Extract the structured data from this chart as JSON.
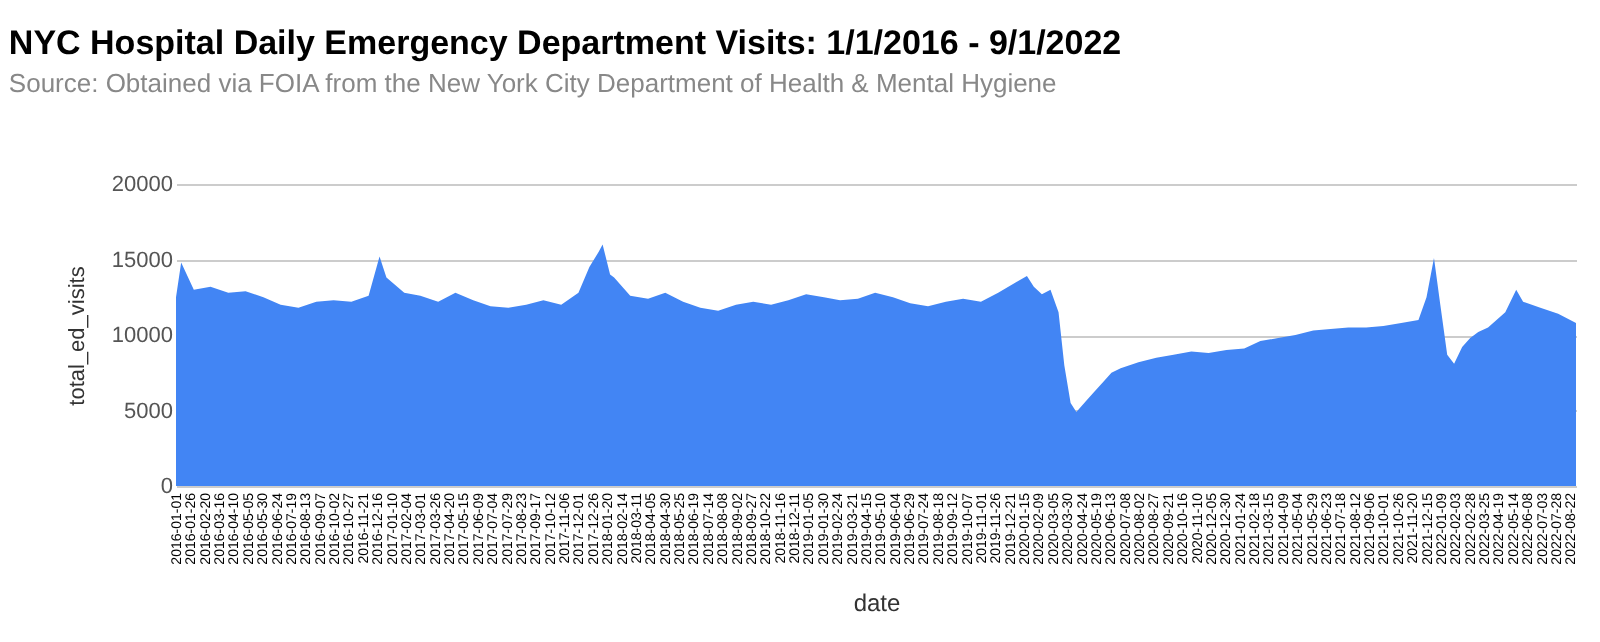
{
  "chart_data": {
    "type": "area",
    "title": "NYC Hospital Daily Emergency Department Visits: 1/1/2016 - 9/1/2022",
    "subtitle": "Source: Obtained via FOIA from the New York City Department of Health & Mental Hygiene",
    "xlabel": "date",
    "ylabel": "total_ed_visits",
    "x": [
      "2016-01-01",
      "2016-01-10",
      "2016-02-01",
      "2016-03-01",
      "2016-04-01",
      "2016-05-01",
      "2016-06-01",
      "2016-07-01",
      "2016-08-01",
      "2016-09-01",
      "2016-10-01",
      "2016-11-01",
      "2016-12-01",
      "2016-12-20",
      "2017-01-01",
      "2017-02-01",
      "2017-03-01",
      "2017-04-01",
      "2017-05-01",
      "2017-06-01",
      "2017-07-01",
      "2017-08-01",
      "2017-09-01",
      "2017-10-01",
      "2017-11-01",
      "2017-12-01",
      "2017-12-20",
      "2018-01-05",
      "2018-01-12",
      "2018-01-25",
      "2018-02-01",
      "2018-03-01",
      "2018-04-01",
      "2018-05-01",
      "2018-06-01",
      "2018-07-01",
      "2018-08-01",
      "2018-09-01",
      "2018-10-01",
      "2018-11-01",
      "2018-12-01",
      "2019-01-01",
      "2019-02-01",
      "2019-03-01",
      "2019-04-01",
      "2019-05-01",
      "2019-06-01",
      "2019-07-01",
      "2019-08-01",
      "2019-09-01",
      "2019-10-01",
      "2019-11-01",
      "2019-12-01",
      "2020-01-01",
      "2020-01-20",
      "2020-02-01",
      "2020-02-15",
      "2020-03-01",
      "2020-03-15",
      "2020-03-25",
      "2020-04-05",
      "2020-04-15",
      "2020-05-01",
      "2020-05-15",
      "2020-06-01",
      "2020-06-15",
      "2020-07-01",
      "2020-08-01",
      "2020-09-01",
      "2020-10-01",
      "2020-11-01",
      "2020-12-01",
      "2021-01-01",
      "2021-02-01",
      "2021-03-01",
      "2021-04-01",
      "2021-05-01",
      "2021-06-01",
      "2021-07-01",
      "2021-08-01",
      "2021-09-01",
      "2021-10-01",
      "2021-11-01",
      "2021-12-01",
      "2021-12-15",
      "2021-12-28",
      "2022-01-08",
      "2022-01-20",
      "2022-02-01",
      "2022-02-15",
      "2022-03-01",
      "2022-03-15",
      "2022-04-01",
      "2022-05-01",
      "2022-05-20",
      "2022-06-01",
      "2022-07-01",
      "2022-08-01",
      "2022-09-01"
    ],
    "series": [
      {
        "color": "#4285f4",
        "values": [
          12500,
          14800,
          13000,
          13200,
          12800,
          12900,
          12500,
          12000,
          11800,
          12200,
          12300,
          12200,
          12600,
          15200,
          13800,
          12800,
          12600,
          12200,
          12800,
          12300,
          11900,
          11800,
          12000,
          12300,
          12000,
          12800,
          14500,
          15500,
          16000,
          14000,
          13800,
          12600,
          12400,
          12800,
          12200,
          11800,
          11600,
          12000,
          12200,
          12000,
          12300,
          12700,
          12500,
          12300,
          12400,
          12800,
          12500,
          12100,
          11900,
          12200,
          12400,
          12200,
          12800,
          13500,
          13900,
          13200,
          12700,
          13000,
          11500,
          8000,
          5500,
          4900,
          5600,
          6200,
          6900,
          7500,
          7800,
          8200,
          8500,
          8700,
          8900,
          8800,
          9000,
          9100,
          9600,
          9800,
          10000,
          10300,
          10400,
          10500,
          10500,
          10600,
          10800,
          11000,
          12500,
          15100,
          12000,
          8700,
          8100,
          9200,
          9800,
          10200,
          10500,
          11500,
          13000,
          12200,
          11800,
          11400,
          10800
        ]
      }
    ],
    "xlim": [
      "2016-01-01",
      "2022-09-01"
    ],
    "xticks": [
      "2016-01-01",
      "2016-01-26",
      "2016-02-20",
      "2016-03-16",
      "2016-04-10",
      "2016-05-05",
      "2016-05-30",
      "2016-06-24",
      "2016-07-19",
      "2016-08-13",
      "2016-09-07",
      "2016-10-02",
      "2016-10-27",
      "2016-11-21",
      "2016-12-16",
      "2017-01-10",
      "2017-02-04",
      "2017-03-01",
      "2017-03-26",
      "2017-04-20",
      "2017-05-15",
      "2017-06-09",
      "2017-07-04",
      "2017-07-29",
      "2017-08-23",
      "2017-09-17",
      "2017-10-12",
      "2017-11-06",
      "2017-12-01",
      "2017-12-26",
      "2018-01-20",
      "2018-02-14",
      "2018-03-11",
      "2018-04-05",
      "2018-04-30",
      "2018-05-25",
      "2018-06-19",
      "2018-07-14",
      "2018-08-08",
      "2018-09-02",
      "2018-09-27",
      "2018-10-22",
      "2018-11-16",
      "2018-12-11",
      "2019-01-05",
      "2019-01-30",
      "2019-02-24",
      "2019-03-21",
      "2019-04-15",
      "2019-05-10",
      "2019-06-04",
      "2019-06-29",
      "2019-07-24",
      "2019-08-18",
      "2019-09-12",
      "2019-10-07",
      "2019-11-01",
      "2019-11-26",
      "2019-12-21",
      "2020-01-15",
      "2020-02-09",
      "2020-03-05",
      "2020-03-30",
      "2020-04-24",
      "2020-05-19",
      "2020-06-13",
      "2020-07-08",
      "2020-08-02",
      "2020-08-27",
      "2020-09-21",
      "2020-10-16",
      "2020-11-10",
      "2020-12-05",
      "2020-12-30",
      "2021-01-24",
      "2021-02-18",
      "2021-03-15",
      "2021-04-09",
      "2021-05-04",
      "2021-05-29",
      "2021-06-23",
      "2021-07-18",
      "2021-08-12",
      "2021-09-06",
      "2021-10-01",
      "2021-10-26",
      "2021-11-20",
      "2021-12-15",
      "2022-01-09",
      "2022-02-03",
      "2022-02-28",
      "2022-03-25",
      "2022-04-19",
      "2022-05-14",
      "2022-06-08",
      "2022-07-03",
      "2022-07-28",
      "2022-08-22"
    ],
    "ylim": [
      0,
      20000
    ],
    "yticks": [
      0,
      5000,
      10000,
      15000,
      20000
    ],
    "grid": "y"
  }
}
